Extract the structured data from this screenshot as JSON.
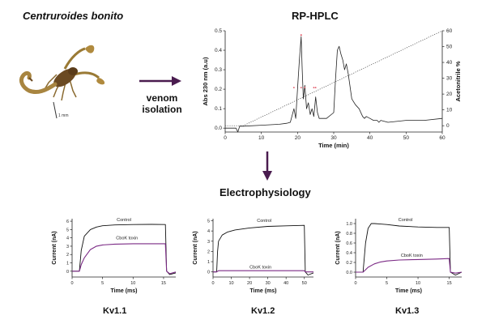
{
  "species": "Centruroides bonito",
  "scale_bar": "1 mm",
  "step_venom": "venom",
  "step_isolation": "isolation",
  "hplc_title": "RP-HPLC",
  "ephys_title": "Electrophysiology",
  "colors": {
    "arrow": "#4a1c4f",
    "control": "#111111",
    "toxin": "#7b2a85",
    "peak": "#e05060"
  },
  "chart_data": [
    {
      "type": "line",
      "title": "RP-HPLC",
      "xlabel": "Time (min)",
      "ylabel": "Abs 230 nm (a.u)",
      "y2label": "Acetonitrile %",
      "xlim": [
        0,
        60
      ],
      "ylim": [
        -0.02,
        0.5
      ],
      "y2lim": [
        -4,
        60
      ],
      "xticks": [
        "0",
        "10",
        "20",
        "30",
        "40",
        "50",
        "60"
      ],
      "yticks": [
        "0.0",
        "0.1",
        "0.2",
        "0.3",
        "0.4",
        "0.5"
      ],
      "y2ticks": [
        "0",
        "10",
        "20",
        "30",
        "40",
        "50",
        "60"
      ],
      "series": [
        {
          "name": "Absorbance",
          "x": [
            0,
            3,
            3.5,
            4,
            5,
            10,
            15,
            17,
            18,
            19,
            19.5,
            20,
            20.5,
            21,
            21.3,
            21.6,
            22,
            22.5,
            23,
            23.5,
            24,
            24.5,
            25,
            25.5,
            26,
            28,
            30,
            30.5,
            31,
            31.5,
            32,
            32.5,
            33,
            33.5,
            34,
            35,
            36,
            37,
            38,
            38.5,
            39,
            40,
            41,
            42,
            42.5,
            43,
            45,
            50,
            55,
            60
          ],
          "y": [
            0.0,
            0.0,
            -0.02,
            0.01,
            0.01,
            0.015,
            0.02,
            0.025,
            0.03,
            0.1,
            0.05,
            0.2,
            0.35,
            0.47,
            0.3,
            0.15,
            0.22,
            0.1,
            0.13,
            0.07,
            0.1,
            0.06,
            0.16,
            0.08,
            0.05,
            0.05,
            0.08,
            0.25,
            0.4,
            0.42,
            0.38,
            0.35,
            0.3,
            0.33,
            0.28,
            0.15,
            0.12,
            0.1,
            0.06,
            0.05,
            0.06,
            0.05,
            0.04,
            0.04,
            0.03,
            0.04,
            0.03,
            0.04,
            0.04,
            0.05
          ]
        },
        {
          "name": "Acetonitrile gradient",
          "x": [
            0,
            5,
            60
          ],
          "y": [
            0,
            0,
            60
          ]
        }
      ]
    },
    {
      "type": "line",
      "panel": "Kv1.1",
      "xlabel": "Time (ms)",
      "ylabel": "Current (nA)",
      "xlim": [
        0,
        17
      ],
      "ylim": [
        -0.7,
        6.3
      ],
      "xticks": [
        "0",
        "5",
        "10",
        "15"
      ],
      "yticks": [
        "0",
        "1",
        "2",
        "3",
        "4",
        "5",
        "6"
      ],
      "series": [
        {
          "name": "Control",
          "x": [
            0,
            1.2,
            1.5,
            2,
            3,
            4,
            5,
            7,
            10,
            13,
            15.3,
            15.5,
            16,
            17
          ],
          "y": [
            0,
            0,
            2.5,
            4.2,
            5.0,
            5.3,
            5.45,
            5.55,
            5.6,
            5.62,
            5.6,
            0,
            -0.4,
            -0.2
          ]
        },
        {
          "name": "CboK toxin",
          "x": [
            0,
            1.2,
            1.5,
            2,
            3,
            4,
            5,
            7,
            10,
            13,
            15.3,
            15.5,
            16,
            17
          ],
          "y": [
            0,
            0,
            0.8,
            1.6,
            2.6,
            3.0,
            3.15,
            3.25,
            3.3,
            3.3,
            3.3,
            0,
            -0.3,
            -0.1
          ]
        }
      ]
    },
    {
      "type": "line",
      "panel": "Kv1.2",
      "xlabel": "Time (ms)",
      "ylabel": "Current (nA)",
      "xlim": [
        0,
        55
      ],
      "ylim": [
        -0.5,
        5.2
      ],
      "xticks": [
        "0",
        "10",
        "20",
        "30",
        "40",
        "50"
      ],
      "yticks": [
        "0",
        "1",
        "2",
        "3",
        "4",
        "5"
      ],
      "series": [
        {
          "name": "Control",
          "x": [
            0,
            2,
            2.5,
            3,
            5,
            8,
            12,
            20,
            30,
            40,
            50,
            50.5,
            52,
            55
          ],
          "y": [
            0,
            0,
            2.0,
            3.0,
            3.6,
            3.9,
            4.1,
            4.3,
            4.45,
            4.5,
            4.55,
            0,
            -0.3,
            -0.1
          ]
        },
        {
          "name": "CboK toxin",
          "x": [
            0,
            2,
            3,
            50,
            50.5,
            55
          ],
          "y": [
            0,
            0,
            0.12,
            0.12,
            0,
            0
          ]
        }
      ]
    },
    {
      "type": "line",
      "panel": "Kv1.3",
      "xlabel": "Time (ms)",
      "ylabel": "Current (nA)",
      "xlim": [
        0,
        17
      ],
      "ylim": [
        -0.1,
        1.1
      ],
      "xticks": [
        "0",
        "5",
        "10",
        "15"
      ],
      "yticks": [
        "0.0",
        "0.2",
        "0.4",
        "0.6",
        "0.8",
        "1.0"
      ],
      "series": [
        {
          "name": "Control",
          "x": [
            0,
            1.2,
            1.6,
            2,
            2.5,
            3,
            4,
            5,
            7,
            10,
            13,
            15,
            15.2,
            16,
            17
          ],
          "y": [
            0,
            0,
            0.6,
            0.9,
            1.0,
            1.0,
            0.99,
            0.98,
            0.95,
            0.93,
            0.92,
            0.92,
            0,
            -0.06,
            0
          ]
        },
        {
          "name": "CboK toxin",
          "x": [
            0,
            1.2,
            2,
            3,
            4,
            5,
            7,
            10,
            13,
            15,
            15.2,
            16,
            17
          ],
          "y": [
            0,
            0,
            0.1,
            0.17,
            0.21,
            0.23,
            0.25,
            0.26,
            0.27,
            0.28,
            0,
            -0.02,
            0
          ]
        }
      ]
    }
  ]
}
